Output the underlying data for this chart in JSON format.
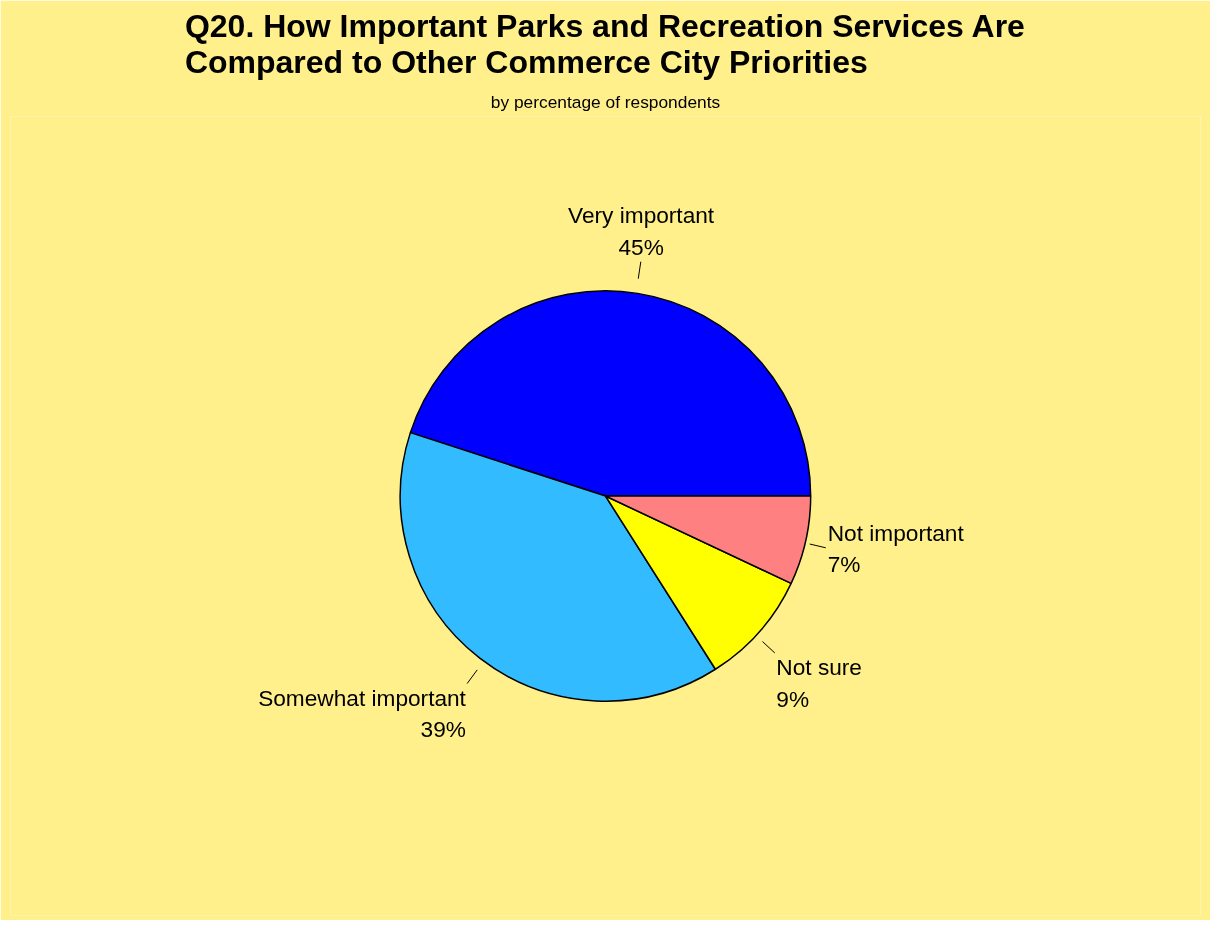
{
  "chart_data": {
    "type": "pie",
    "title": "Q20. How Important Parks and Recreation Services Are\nCompared to Other Commerce City Priorities",
    "subtitle": "by percentage of respondents",
    "categories": [
      "Very important",
      "Somewhat important",
      "Not sure",
      "Not important"
    ],
    "values": [
      45,
      39,
      9,
      7
    ],
    "value_labels": [
      "45%",
      "39%",
      "9%",
      "7%"
    ],
    "colors": [
      "#0000ff",
      "#33bbff",
      "#ffff00",
      "#ff8080"
    ]
  }
}
